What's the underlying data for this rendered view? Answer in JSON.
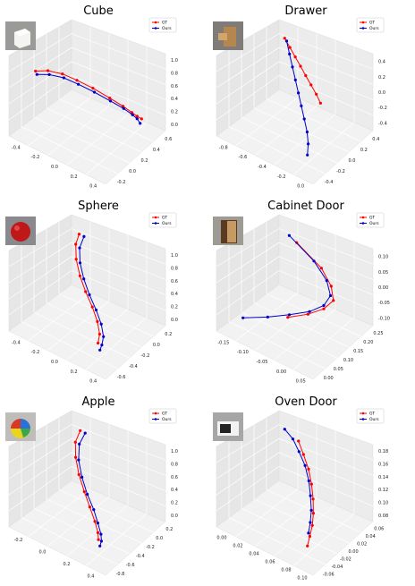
{
  "colors": {
    "gt": "#ff0000",
    "ours": "#0000cc",
    "pane": "#f2f2f2",
    "pane_side": "#e6e6e6",
    "grid": "#ffffff"
  },
  "legend_labels": [
    "GT",
    "Ours"
  ],
  "chart_data": [
    {
      "type": "line3d",
      "title": "Cube",
      "thumbnail_icon": "white-cube-photo",
      "legend_placement": "top-right",
      "grid": true,
      "x_ticks": [
        "-0.4",
        "-0.2",
        "0.0",
        "0.2",
        "0.4"
      ],
      "y_ticks": [
        "-0.2",
        "0.0",
        "0.2",
        "0.4",
        "0.6"
      ],
      "z_ticks": [
        "0.0",
        "0.2",
        "0.4",
        "0.6",
        "0.8",
        "1.0"
      ],
      "series": [
        {
          "name": "GT",
          "points": [
            [
              -0.42,
              0.0,
              0.72
            ],
            [
              -0.3,
              0.05,
              0.75
            ],
            [
              -0.15,
              0.1,
              0.74
            ],
            [
              0.0,
              0.15,
              0.68
            ],
            [
              0.15,
              0.22,
              0.58
            ],
            [
              0.3,
              0.3,
              0.44
            ],
            [
              0.4,
              0.38,
              0.3
            ],
            [
              0.45,
              0.45,
              0.17
            ],
            [
              0.47,
              0.5,
              0.08
            ],
            [
              0.48,
              0.55,
              0.0
            ]
          ]
        },
        {
          "name": "Ours",
          "points": [
            [
              -0.4,
              0.0,
              0.68
            ],
            [
              -0.28,
              0.05,
              0.7
            ],
            [
              -0.13,
              0.1,
              0.69
            ],
            [
              0.02,
              0.15,
              0.63
            ],
            [
              0.17,
              0.22,
              0.53
            ],
            [
              0.31,
              0.3,
              0.4
            ],
            [
              0.41,
              0.38,
              0.27
            ],
            [
              0.46,
              0.45,
              0.14
            ],
            [
              0.47,
              0.5,
              0.04
            ],
            [
              0.46,
              0.55,
              -0.08
            ]
          ]
        }
      ]
    },
    {
      "type": "line3d",
      "title": "Drawer",
      "thumbnail_icon": "wooden-drawer-photo",
      "legend_placement": "top-right",
      "grid": true,
      "x_ticks": [
        "-0.8",
        "-0.6",
        "-0.4",
        "-0.2",
        "0.0"
      ],
      "y_ticks": [
        "-0.4",
        "-0.2",
        "0.0",
        "0.2",
        "0.4"
      ],
      "z_ticks": [
        "-0.4",
        "-0.2",
        "0.0",
        "0.2",
        "0.4"
      ],
      "series": [
        {
          "name": "GT",
          "points": [
            [
              -0.55,
              -0.12,
              0.07
            ],
            [
              -0.47,
              -0.13,
              0.05
            ],
            [
              -0.39,
              -0.14,
              0.03
            ],
            [
              -0.31,
              -0.15,
              0.01
            ],
            [
              -0.23,
              -0.16,
              -0.01
            ],
            [
              -0.15,
              -0.17,
              -0.03
            ],
            [
              -0.07,
              -0.18,
              -0.05
            ],
            [
              0.0,
              -0.19,
              -0.07
            ]
          ]
        },
        {
          "name": "Ours",
          "points": [
            [
              -0.53,
              -0.12,
              0.06
            ],
            [
              -0.45,
              -0.14,
              0.03
            ],
            [
              -0.37,
              -0.16,
              0.0
            ],
            [
              -0.29,
              -0.18,
              -0.03
            ],
            [
              -0.21,
              -0.2,
              -0.06
            ],
            [
              -0.13,
              -0.22,
              -0.09
            ],
            [
              -0.05,
              -0.24,
              -0.12
            ],
            [
              0.03,
              -0.26,
              -0.15
            ],
            [
              0.09,
              -0.28,
              -0.18
            ],
            [
              0.13,
              -0.3,
              -0.21
            ]
          ]
        }
      ]
    },
    {
      "type": "line3d",
      "title": "Sphere",
      "thumbnail_icon": "red-ball-photo",
      "legend_placement": "top-right",
      "grid": true,
      "x_ticks": [
        "-0.4",
        "-0.2",
        "0.0",
        "0.2",
        "0.4"
      ],
      "y_ticks": [
        "-0.6",
        "-0.4",
        "-0.2",
        "0.0",
        "0.2"
      ],
      "z_ticks": [
        "0.0",
        "0.2",
        "0.4",
        "0.6",
        "0.8",
        "1.0"
      ],
      "series": [
        {
          "name": "GT",
          "points": [
            [
              -0.2,
              0.2,
              0.92
            ],
            [
              -0.22,
              0.17,
              0.75
            ],
            [
              -0.19,
              0.12,
              0.55
            ],
            [
              -0.12,
              0.06,
              0.36
            ],
            [
              -0.02,
              -0.02,
              0.22
            ],
            [
              0.1,
              -0.12,
              0.12
            ],
            [
              0.22,
              -0.25,
              0.05
            ],
            [
              0.32,
              -0.4,
              0.01
            ],
            [
              0.38,
              -0.55,
              0.0
            ]
          ]
        },
        {
          "name": "Ours",
          "points": [
            [
              -0.15,
              0.2,
              0.92
            ],
            [
              -0.18,
              0.17,
              0.72
            ],
            [
              -0.15,
              0.12,
              0.52
            ],
            [
              -0.08,
              0.06,
              0.34
            ],
            [
              0.02,
              -0.02,
              0.2
            ],
            [
              0.14,
              -0.12,
              0.1
            ],
            [
              0.26,
              -0.25,
              0.04
            ],
            [
              0.36,
              -0.4,
              0.0
            ],
            [
              0.42,
              -0.55,
              0.0
            ],
            [
              0.45,
              -0.65,
              0.0
            ]
          ]
        }
      ]
    },
    {
      "type": "line3d",
      "title": "Cabinet Door",
      "thumbnail_icon": "wooden-cabinet-photo",
      "legend_placement": "top-right",
      "grid": true,
      "x_ticks": [
        "-0.15",
        "-0.10",
        "-0.05",
        "0.00",
        "0.05"
      ],
      "y_ticks": [
        "0.00",
        "0.05",
        "0.10",
        "0.15",
        "0.20",
        "0.25"
      ],
      "z_ticks": [
        "-0.10",
        "-0.05",
        "0.00",
        "0.05",
        "0.10"
      ],
      "series": [
        {
          "name": "GT",
          "points": [
            [
              -0.02,
              0.12,
              0.06
            ],
            [
              0.0,
              0.11,
              0.04
            ],
            [
              0.01,
              0.1,
              0.02
            ],
            [
              0.015,
              0.09,
              0.0
            ],
            [
              0.012,
              0.08,
              -0.02
            ],
            [
              0.005,
              0.07,
              -0.04
            ],
            [
              -0.005,
              0.06,
              -0.06
            ]
          ]
        },
        {
          "name": "Ours",
          "points": [
            [
              -0.025,
              0.12,
              0.07
            ],
            [
              -0.005,
              0.11,
              0.05
            ],
            [
              0.007,
              0.1,
              0.03
            ],
            [
              0.013,
              0.09,
              0.01
            ],
            [
              0.012,
              0.08,
              -0.01
            ],
            [
              0.006,
              0.07,
              -0.03
            ],
            [
              -0.004,
              0.06,
              -0.05
            ],
            [
              -0.015,
              0.05,
              -0.07
            ],
            [
              -0.028,
              0.04,
              -0.09
            ]
          ]
        }
      ]
    },
    {
      "type": "line3d",
      "title": "Apple",
      "thumbnail_icon": "colorful-apple-photo",
      "legend_placement": "top-right",
      "grid": true,
      "x_ticks": [
        "-0.2",
        "0.0",
        "0.2",
        "0.4"
      ],
      "y_ticks": [
        "-0.8",
        "-0.6",
        "-0.4",
        "-0.2",
        "0.0",
        "0.2"
      ],
      "z_ticks": [
        "0.0",
        "0.2",
        "0.4",
        "0.6",
        "0.8",
        "1.0"
      ],
      "series": [
        {
          "name": "GT",
          "points": [
            [
              -0.1,
              0.2,
              0.92
            ],
            [
              -0.13,
              0.16,
              0.72
            ],
            [
              -0.1,
              0.1,
              0.52
            ],
            [
              -0.03,
              0.02,
              0.33
            ],
            [
              0.07,
              -0.08,
              0.18
            ],
            [
              0.18,
              -0.2,
              0.08
            ],
            [
              0.3,
              -0.35,
              0.02
            ],
            [
              0.4,
              -0.5,
              0.0
            ],
            [
              0.46,
              -0.62,
              0.0
            ]
          ]
        },
        {
          "name": "Ours",
          "points": [
            [
              -0.05,
              0.2,
              0.92
            ],
            [
              -0.09,
              0.16,
              0.72
            ],
            [
              -0.07,
              0.1,
              0.5
            ],
            [
              0.0,
              0.02,
              0.31
            ],
            [
              0.1,
              -0.08,
              0.16
            ],
            [
              0.22,
              -0.2,
              0.07
            ],
            [
              0.33,
              -0.35,
              0.02
            ],
            [
              0.43,
              -0.5,
              0.0
            ],
            [
              0.49,
              -0.62,
              0.0
            ],
            [
              0.52,
              -0.72,
              0.0
            ]
          ]
        }
      ]
    },
    {
      "type": "line3d",
      "title": "Oven Door",
      "thumbnail_icon": "white-oven-photo",
      "legend_placement": "top-right",
      "grid": true,
      "x_ticks": [
        "0.00",
        "0.02",
        "0.04",
        "0.06",
        "0.08",
        "0.10"
      ],
      "y_ticks": [
        "-0.06",
        "-0.04",
        "-0.02",
        "0.00",
        "0.02",
        "0.04",
        "0.06"
      ],
      "z_ticks": [
        "0.08",
        "0.10",
        "0.12",
        "0.14",
        "0.16",
        "0.18"
      ],
      "series": [
        {
          "name": "GT",
          "points": [
            [
              0.02,
              0.04,
              0.155
            ],
            [
              0.035,
              0.035,
              0.148
            ],
            [
              0.05,
              0.03,
              0.139
            ],
            [
              0.062,
              0.025,
              0.128
            ],
            [
              0.072,
              0.02,
              0.116
            ],
            [
              0.08,
              0.015,
              0.104
            ],
            [
              0.086,
              0.01,
              0.094
            ],
            [
              0.09,
              0.005,
              0.085
            ],
            [
              0.094,
              0.0,
              0.078
            ]
          ]
        },
        {
          "name": "Ours",
          "points": [
            [
              0.0,
              0.04,
              0.163
            ],
            [
              0.015,
              0.038,
              0.158
            ],
            [
              0.03,
              0.034,
              0.151
            ],
            [
              0.045,
              0.03,
              0.142
            ],
            [
              0.058,
              0.025,
              0.131
            ],
            [
              0.068,
              0.02,
              0.119
            ],
            [
              0.077,
              0.015,
              0.107
            ],
            [
              0.083,
              0.01,
              0.097
            ],
            [
              0.088,
              0.005,
              0.089
            ]
          ]
        }
      ]
    }
  ]
}
